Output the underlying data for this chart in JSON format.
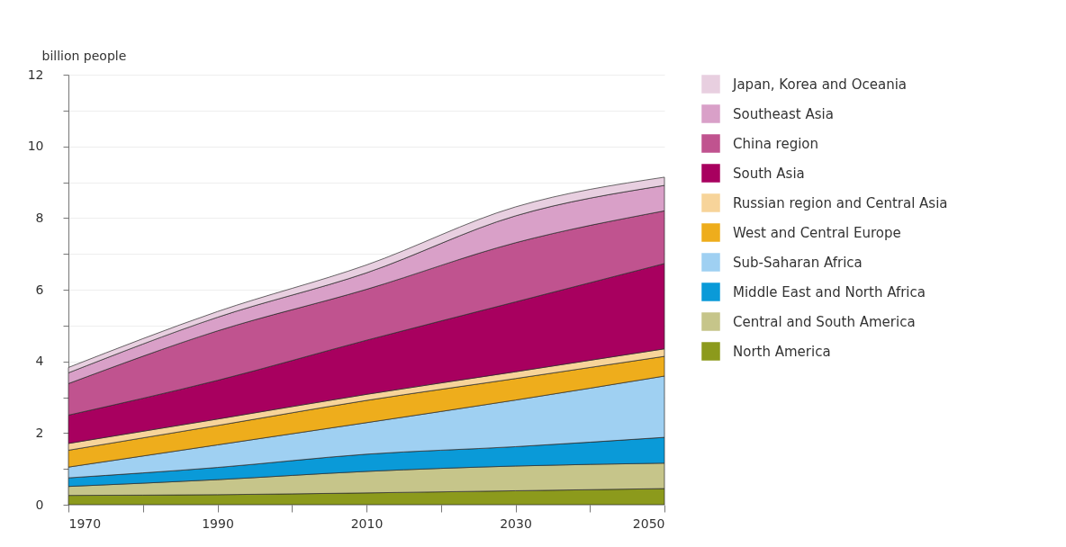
{
  "chart_data": {
    "type": "area",
    "stacked": true,
    "ylabel": "billion people",
    "x": [
      1970,
      1990,
      2010,
      2030,
      2050
    ],
    "xlim": [
      1970,
      2050
    ],
    "xticks": [
      1970,
      {
        "value": 1980,
        "label": null
      },
      1990,
      {
        "value": 2000,
        "label": null
      },
      2010,
      {
        "value": 2020,
        "label": null
      },
      2030,
      {
        "value": 2040,
        "label": null
      },
      2050
    ],
    "ylim": [
      0,
      12
    ],
    "yticks": [
      0,
      {
        "value": 1,
        "label": null
      },
      2,
      {
        "value": 3,
        "label": null
      },
      4,
      {
        "value": 5,
        "label": null
      },
      6,
      {
        "value": 7,
        "label": null
      },
      8,
      {
        "value": 9,
        "label": null
      },
      10,
      {
        "value": 11,
        "label": null
      },
      12
    ],
    "grid": "y",
    "legend": "right",
    "series": [
      {
        "name": "North America",
        "color": "#8c9a1c",
        "values": [
          0.26,
          0.28,
          0.33,
          0.39,
          0.45
        ]
      },
      {
        "name": "Central and South America",
        "color": "#c6c58a",
        "values": [
          0.25,
          0.42,
          0.6,
          0.69,
          0.71
        ]
      },
      {
        "name": "Middle East and North Africa",
        "color": "#0a9ad8",
        "values": [
          0.24,
          0.34,
          0.48,
          0.54,
          0.72
        ]
      },
      {
        "name": "Sub-Saharan Africa",
        "color": "#9fd0f2",
        "values": [
          0.3,
          0.63,
          0.88,
          1.3,
          1.71
        ]
      },
      {
        "name": "West and Central Europe",
        "color": "#eead1c",
        "values": [
          0.47,
          0.54,
          0.62,
          0.6,
          0.55
        ]
      },
      {
        "name": "Russian region and Central Asia",
        "color": "#f7d49a",
        "values": [
          0.19,
          0.18,
          0.17,
          0.19,
          0.21
        ]
      },
      {
        "name": "South Asia",
        "color": "#a8005f",
        "values": [
          0.79,
          1.08,
          1.51,
          1.95,
          2.38
        ]
      },
      {
        "name": "China region",
        "color": "#c0538f",
        "values": [
          0.88,
          1.38,
          1.42,
          1.65,
          1.47
        ]
      },
      {
        "name": "Southeast Asia",
        "color": "#d9a0c8",
        "values": [
          0.3,
          0.38,
          0.46,
          0.75,
          0.71
        ]
      },
      {
        "name": "Japan, Korea and Oceania",
        "color": "#e8cfe0",
        "values": [
          0.15,
          0.16,
          0.22,
          0.25,
          0.23
        ]
      }
    ]
  }
}
